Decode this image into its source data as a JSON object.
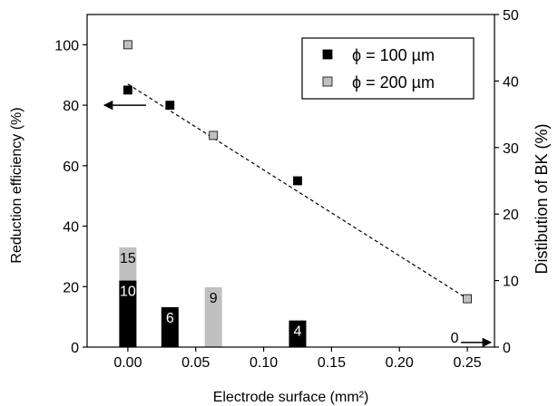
{
  "chart_data": {
    "type": "scatter+bar",
    "xlabel": "Electrode surface (mm²)",
    "ylabel_left": "Reduction efficiency (%)",
    "ylabel_right": "Distibution of BK (%)",
    "xlim": [
      -0.03,
      0.27
    ],
    "ylim_left": [
      0,
      110
    ],
    "ylim_right": [
      0,
      50
    ],
    "x_ticks": [
      "0.00",
      "0.05",
      "0.10",
      "0.15",
      "0.20",
      "0.25"
    ],
    "y_ticks_left": [
      "0",
      "20",
      "40",
      "60",
      "80",
      "100"
    ],
    "y_ticks_right": [
      "0",
      "10",
      "20",
      "30",
      "40",
      "50"
    ],
    "legend": {
      "position": "top-right",
      "items": [
        "ϕ = 100 µm",
        "ϕ = 200 µm"
      ],
      "colors": [
        "#000000",
        "#c0c0c0"
      ]
    },
    "series": [
      {
        "name": "ϕ = 100 µm",
        "color": "#000000",
        "points": [
          {
            "x": 0.0,
            "y": 85
          },
          {
            "x": 0.031,
            "y": 80
          },
          {
            "x": 0.125,
            "y": 55
          }
        ]
      },
      {
        "name": "ϕ = 200 µm",
        "color": "#c0c0c0",
        "points": [
          {
            "x": 0.0,
            "y": 100
          },
          {
            "x": 0.063,
            "y": 70
          },
          {
            "x": 0.25,
            "y": 16
          }
        ]
      }
    ],
    "trend_line": {
      "style": "dashed",
      "from": {
        "x": 0.0,
        "y": 87
      },
      "to": {
        "x": 0.25,
        "y": 16
      }
    },
    "bars_right_axis": [
      {
        "x": 0.0,
        "value": 15,
        "label": "15",
        "series": "ϕ = 200 µm",
        "color": "#c0c0c0"
      },
      {
        "x": 0.0,
        "value": 10,
        "label": "10",
        "series": "ϕ = 100 µm",
        "color": "#000000"
      },
      {
        "x": 0.031,
        "value": 6,
        "label": "6",
        "series": "ϕ = 100 µm",
        "color": "#000000"
      },
      {
        "x": 0.063,
        "value": 9,
        "label": "9",
        "series": "ϕ = 200 µm",
        "color": "#c0c0c0"
      },
      {
        "x": 0.125,
        "value": 4,
        "label": "4",
        "series": "ϕ = 100 µm",
        "color": "#000000"
      },
      {
        "x": 0.25,
        "value": 0,
        "label": "0",
        "series": "ϕ = 200 µm",
        "color": "#c0c0c0"
      }
    ],
    "annotations": [
      {
        "type": "arrow",
        "direction": "left",
        "at": {
          "x": 0.0,
          "y": 80
        },
        "meaning": "left axis"
      },
      {
        "type": "arrow",
        "direction": "right",
        "at": {
          "x": 0.25,
          "y_right": 0.7
        },
        "meaning": "right axis"
      }
    ]
  }
}
